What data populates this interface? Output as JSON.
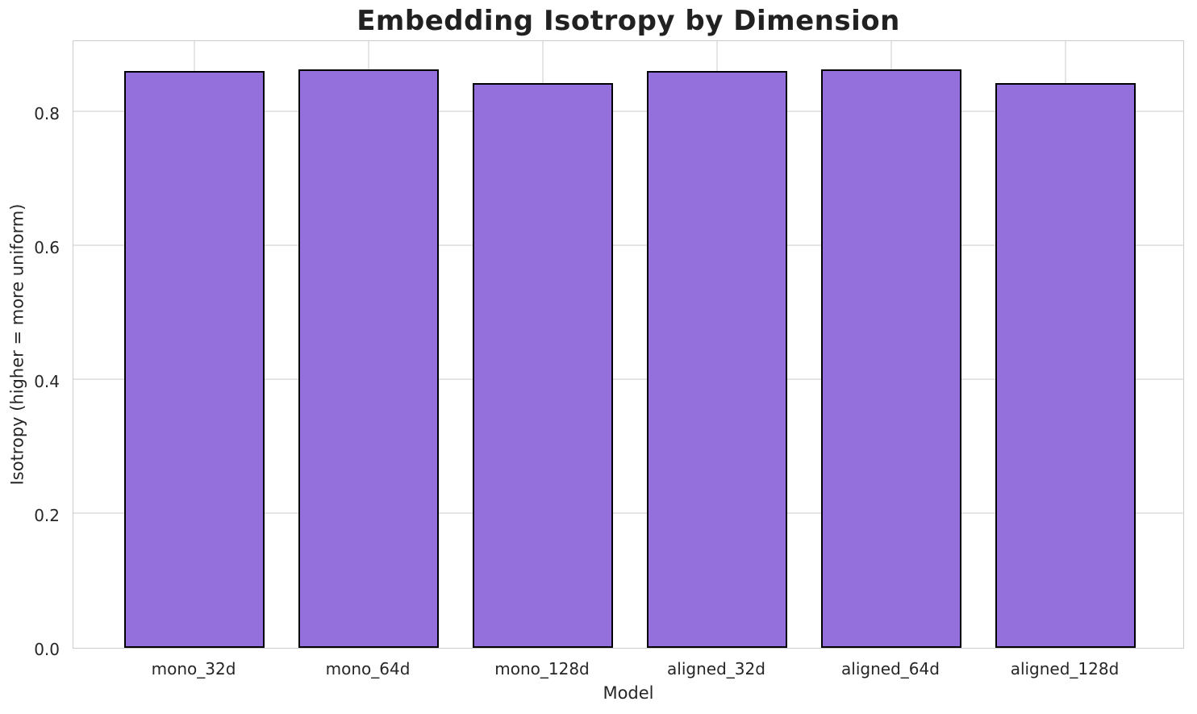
{
  "chart_data": {
    "type": "bar",
    "title": "Embedding Isotropy by Dimension",
    "xlabel": "Model",
    "ylabel": "Isotropy (higher = more uniform)",
    "categories": [
      "mono_32d",
      "mono_64d",
      "mono_128d",
      "aligned_32d",
      "aligned_64d",
      "aligned_128d"
    ],
    "values": [
      0.861,
      0.863,
      0.843,
      0.861,
      0.863,
      0.843
    ],
    "ylim": [
      0,
      0.908
    ],
    "yticks": [
      0.0,
      0.2,
      0.4,
      0.6,
      0.8
    ],
    "grid": true,
    "legend": false,
    "bar_width_fraction": 0.8,
    "colors": {
      "bar_fill": "#9370DB",
      "bar_edge": "#000000",
      "grid": "#e5e5e5",
      "spine": "#cccccc",
      "text": "#262626"
    }
  }
}
